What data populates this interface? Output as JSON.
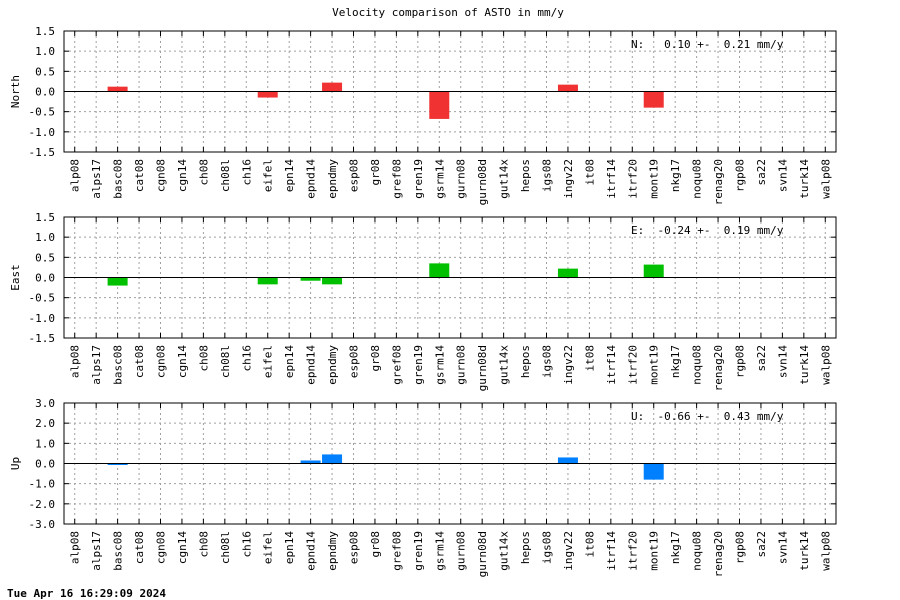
{
  "title": "Velocity comparison of ASTO in mm/y",
  "timestamp": "Tue Apr 16 16:29:09 2024",
  "chart_data": [
    {
      "type": "bar",
      "ylabel": "North",
      "annotation": "N:   0.10 +-  0.21 mm/y",
      "color": "#f03232",
      "ylim": [
        -1.5,
        1.5
      ],
      "yticks": [
        -1.5,
        -1.0,
        -0.5,
        0.0,
        0.5,
        1.0,
        1.5
      ],
      "ytick_labels": [
        "-1.5",
        "-1.0",
        "-0.5",
        "0.0",
        "0.5",
        "1.0",
        "1.5"
      ],
      "grid": true,
      "categories": [
        "alp08",
        "alps17",
        "basc08",
        "cat08",
        "cgn08",
        "cgn14",
        "ch08",
        "ch08l",
        "ch16",
        "eifel",
        "epn14",
        "epnd14",
        "epndmy",
        "esp08",
        "gr08",
        "gref08",
        "gren19",
        "gsrm14",
        "gurn08",
        "gurn08d",
        "gut14x",
        "hepos",
        "igs08",
        "ingv22",
        "it08",
        "itrf14",
        "itrf20",
        "mont19",
        "nkg17",
        "noqu08",
        "renag20",
        "rgp08",
        "sa22",
        "svn14",
        "turk14",
        "walp08"
      ],
      "values": [
        null,
        null,
        0.12,
        null,
        null,
        null,
        null,
        null,
        null,
        -0.15,
        null,
        null,
        0.22,
        null,
        null,
        null,
        null,
        -0.68,
        null,
        null,
        null,
        null,
        null,
        0.17,
        null,
        null,
        null,
        -0.4,
        null,
        null,
        null,
        null,
        null,
        null,
        null,
        null
      ]
    },
    {
      "type": "bar",
      "ylabel": "East",
      "annotation": "E:  -0.24 +-  0.19 mm/y",
      "color": "#00c000",
      "ylim": [
        -1.5,
        1.5
      ],
      "yticks": [
        -1.5,
        -1.0,
        -0.5,
        0.0,
        0.5,
        1.0,
        1.5
      ],
      "ytick_labels": [
        "-1.5",
        "-1.0",
        "-0.5",
        "0.0",
        "0.5",
        "1.0",
        "1.5"
      ],
      "grid": true,
      "categories": [
        "alp08",
        "alps17",
        "basc08",
        "cat08",
        "cgn08",
        "cgn14",
        "ch08",
        "ch08l",
        "ch16",
        "eifel",
        "epn14",
        "epnd14",
        "epndmy",
        "esp08",
        "gr08",
        "gref08",
        "gren19",
        "gsrm14",
        "gurn08",
        "gurn08d",
        "gut14x",
        "hepos",
        "igs08",
        "ingv22",
        "it08",
        "itrf14",
        "itrf20",
        "mont19",
        "nkg17",
        "noqu08",
        "renag20",
        "rgp08",
        "sa22",
        "svn14",
        "turk14",
        "walp08"
      ],
      "values": [
        null,
        null,
        -0.2,
        null,
        null,
        null,
        null,
        null,
        null,
        -0.17,
        null,
        -0.08,
        -0.17,
        null,
        null,
        null,
        null,
        0.35,
        null,
        null,
        null,
        null,
        null,
        0.22,
        null,
        null,
        null,
        0.32,
        null,
        null,
        null,
        null,
        null,
        null,
        null,
        null
      ]
    },
    {
      "type": "bar",
      "ylabel": "Up",
      "annotation": "U:  -0.66 +-  0.43 mm/y",
      "color": "#0080ff",
      "ylim": [
        -3.0,
        3.0
      ],
      "yticks": [
        -3.0,
        -2.0,
        -1.0,
        0.0,
        1.0,
        2.0,
        3.0
      ],
      "ytick_labels": [
        "-3.0",
        "-2.0",
        "-1.0",
        "0.0",
        "1.0",
        "2.0",
        "3.0"
      ],
      "grid": true,
      "categories": [
        "alp08",
        "alps17",
        "basc08",
        "cat08",
        "cgn08",
        "cgn14",
        "ch08",
        "ch08l",
        "ch16",
        "eifel",
        "epn14",
        "epnd14",
        "epndmy",
        "esp08",
        "gr08",
        "gref08",
        "gren19",
        "gsrm14",
        "gurn08",
        "gurn08d",
        "gut14x",
        "hepos",
        "igs08",
        "ingv22",
        "it08",
        "itrf14",
        "itrf20",
        "mont19",
        "nkg17",
        "noqu08",
        "renag20",
        "rgp08",
        "sa22",
        "svn14",
        "turk14",
        "walp08"
      ],
      "values": [
        null,
        null,
        -0.05,
        null,
        null,
        null,
        null,
        null,
        null,
        null,
        null,
        0.15,
        0.45,
        null,
        null,
        null,
        null,
        null,
        null,
        null,
        null,
        null,
        null,
        0.3,
        null,
        null,
        null,
        -0.8,
        null,
        null,
        null,
        null,
        null,
        null,
        null,
        null
      ]
    }
  ]
}
